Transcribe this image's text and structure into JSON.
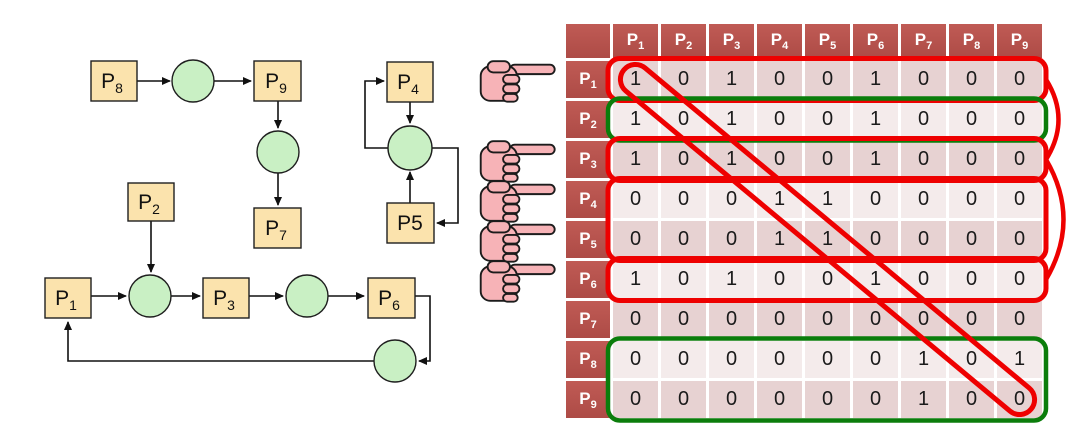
{
  "slide": {
    "background": "#ffffff"
  },
  "diagram": {
    "node_fill": "#fbe3ad",
    "node_border": "#1f1f1f",
    "place_fill": "#c9f0c4",
    "nodes": [
      {
        "id": "P8",
        "base": "P",
        "sub": "8"
      },
      {
        "id": "P9",
        "base": "P",
        "sub": "9"
      },
      {
        "id": "P4",
        "base": "P",
        "sub": "4"
      },
      {
        "id": "P2",
        "base": "P",
        "sub": "2"
      },
      {
        "id": "P7",
        "base": "P",
        "sub": "7"
      },
      {
        "id": "P5",
        "base": "P5",
        "sub": ""
      },
      {
        "id": "P1",
        "base": "P",
        "sub": "1"
      },
      {
        "id": "P3",
        "base": "P",
        "sub": "3"
      },
      {
        "id": "P6",
        "base": "P",
        "sub": "6"
      }
    ]
  },
  "matrix": {
    "header_bg": "#b5524d",
    "band_dark": "#e7d2d2",
    "band_light": "#f4ebeb",
    "col_headers": [
      {
        "base": "P",
        "sub": "1"
      },
      {
        "base": "P",
        "sub": "2"
      },
      {
        "base": "P",
        "sub": "3"
      },
      {
        "base": "P",
        "sub": "4"
      },
      {
        "base": "P",
        "sub": "5"
      },
      {
        "base": "P",
        "sub": "6"
      },
      {
        "base": "P",
        "sub": "7"
      },
      {
        "base": "P",
        "sub": "8"
      },
      {
        "base": "P",
        "sub": "9"
      }
    ],
    "row_headers": [
      {
        "base": "P",
        "sub": "1"
      },
      {
        "base": "P",
        "sub": "2"
      },
      {
        "base": "P",
        "sub": "3"
      },
      {
        "base": "P",
        "sub": "4"
      },
      {
        "base": "P",
        "sub": "5"
      },
      {
        "base": "P",
        "sub": "6"
      },
      {
        "base": "P",
        "sub": "7"
      },
      {
        "base": "P",
        "sub": "8"
      },
      {
        "base": "P",
        "sub": "9"
      }
    ],
    "rows": [
      [
        1,
        0,
        1,
        0,
        0,
        1,
        0,
        0,
        0
      ],
      [
        1,
        0,
        1,
        0,
        0,
        1,
        0,
        0,
        0
      ],
      [
        1,
        0,
        1,
        0,
        0,
        1,
        0,
        0,
        0
      ],
      [
        0,
        0,
        0,
        1,
        1,
        0,
        0,
        0,
        0
      ],
      [
        0,
        0,
        0,
        1,
        1,
        0,
        0,
        0,
        0
      ],
      [
        1,
        0,
        1,
        0,
        0,
        1,
        0,
        0,
        0
      ],
      [
        0,
        0,
        0,
        0,
        0,
        0,
        0,
        0,
        0
      ],
      [
        0,
        0,
        0,
        0,
        0,
        0,
        1,
        0,
        1
      ],
      [
        0,
        0,
        0,
        0,
        0,
        0,
        1,
        0,
        0
      ]
    ]
  },
  "annotations": {
    "red_color": "#ee0000",
    "green_color": "#0b7d0b",
    "pointer_rows": [
      "P1",
      "P3",
      "P4",
      "P5",
      "P6"
    ],
    "highlights": [
      {
        "from": "P1",
        "to": "P1",
        "color": "red"
      },
      {
        "from": "P2",
        "to": "P2",
        "color": "green"
      },
      {
        "from": "P3",
        "to": "P3",
        "color": "red"
      },
      {
        "from": "P4",
        "to": "P5",
        "color": "red"
      },
      {
        "from": "P6",
        "to": "P6",
        "color": "red"
      },
      {
        "from": "P8",
        "to": "P9",
        "color": "green"
      }
    ],
    "diagonal": "main-diagonal-strike",
    "braces": [
      "P1-P3",
      "P3-P6"
    ]
  }
}
